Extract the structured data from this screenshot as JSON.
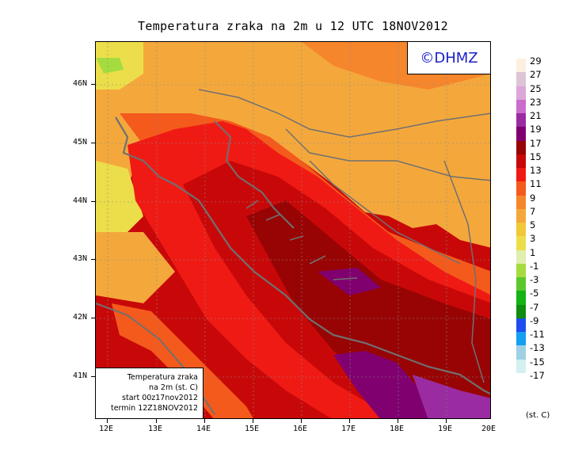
{
  "title": "Temperatura zraka na 2m u 12 UTC 18NOV2012",
  "logo": "©DHMZ",
  "info_box": {
    "line1": "Temperatura zraka",
    "line2": "na 2m (st. C)",
    "line3": "start 00z17nov2012",
    "line4": "termin 12Z18NOV2012"
  },
  "axes": {
    "lat_labels": [
      "46N",
      "45N",
      "44N",
      "43N",
      "42N",
      "41N"
    ],
    "lon_labels": [
      "12E",
      "13E",
      "14E",
      "15E",
      "16E",
      "17E",
      "18E",
      "19E",
      "20E"
    ]
  },
  "colorbar": {
    "unit": "(st. C)",
    "levels": [
      {
        "label": "29",
        "color": "#fdefe0"
      },
      {
        "label": "27",
        "color": "#ddc4d6"
      },
      {
        "label": "25",
        "color": "#dba6d8"
      },
      {
        "label": "23",
        "color": "#cc6ccb"
      },
      {
        "label": "21",
        "color": "#9a2ba0"
      },
      {
        "label": "19",
        "color": "#800070"
      },
      {
        "label": "17",
        "color": "#980404"
      },
      {
        "label": "15",
        "color": "#c80808"
      },
      {
        "label": "13",
        "color": "#f01a14"
      },
      {
        "label": "11",
        "color": "#f45a1c"
      },
      {
        "label": "9",
        "color": "#f6862c"
      },
      {
        "label": "7",
        "color": "#f4a83c"
      },
      {
        "label": "5",
        "color": "#f0c838"
      },
      {
        "label": "3",
        "color": "#ecde4a"
      },
      {
        "label": "1",
        "color": "#e0eeb0"
      },
      {
        "label": "-1",
        "color": "#a4dc40"
      },
      {
        "label": "-3",
        "color": "#5ac82c"
      },
      {
        "label": "-5",
        "color": "#14b414"
      },
      {
        "label": "-7",
        "color": "#108c10"
      },
      {
        "label": "-9",
        "color": "#1e4cf0"
      },
      {
        "label": "-11",
        "color": "#14a0f0"
      },
      {
        "label": "-13",
        "color": "#a0d0e4"
      },
      {
        "label": "-15",
        "color": "#d4f0f0"
      },
      {
        "label": "-17",
        "color": "#ffffff"
      }
    ]
  }
}
